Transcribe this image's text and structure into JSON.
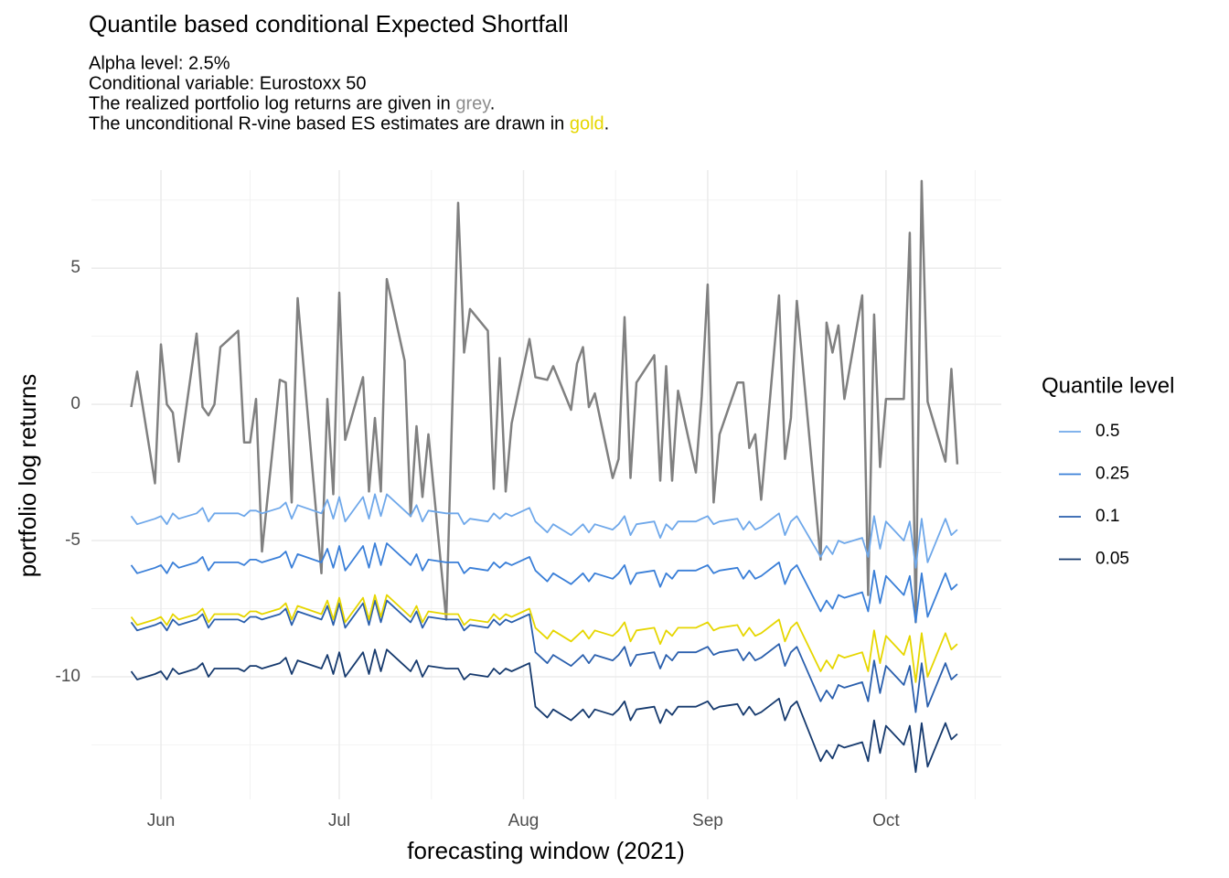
{
  "chart_data": {
    "type": "line",
    "title": "Quantile based conditional Expected Shortfall",
    "subtitle": [
      "Alpha level: 2.5%",
      "Conditional variable: Eurostoxx 50",
      [
        "The realized portfolio log returns are given in ",
        {
          "text": "grey",
          "color": "#8c8c8c"
        },
        "."
      ],
      [
        "The unconditional R-vine based ES estimates are drawn in ",
        {
          "text": "gold",
          "color": "#e6d600"
        },
        "."
      ]
    ],
    "x_label": "forecasting window (2021)",
    "y_label": "portfolio log returns",
    "legend_title": "Quantile level",
    "legend_position": "right",
    "grid": true,
    "xlim": [
      140.3,
      293.4
    ],
    "ylim": [
      -14.5,
      8.6
    ],
    "xticks": [
      {
        "value": 152,
        "label": "Jun"
      },
      {
        "value": 182,
        "label": "Jul"
      },
      {
        "value": 213,
        "label": "Aug"
      },
      {
        "value": 244,
        "label": "Sep"
      },
      {
        "value": 274,
        "label": "Oct"
      }
    ],
    "yticks": [
      -10,
      -5,
      0,
      5
    ],
    "x": [
      147,
      148,
      151,
      152,
      153,
      154,
      155,
      158,
      159,
      160,
      161,
      162,
      165,
      166,
      167,
      168,
      169,
      172,
      173,
      174,
      175,
      179,
      180,
      181,
      182,
      183,
      186,
      187,
      188,
      189,
      190,
      193,
      194,
      195,
      196,
      197,
      200,
      202,
      203,
      204,
      207,
      208,
      209,
      210,
      211,
      214,
      215,
      217,
      218,
      221,
      222,
      223,
      224,
      225,
      228,
      229,
      230,
      231,
      232,
      235,
      236,
      237,
      238,
      239,
      242,
      243,
      244,
      245,
      246,
      249,
      250,
      251,
      252,
      253,
      256,
      257,
      258,
      259,
      263,
      264,
      265,
      266,
      267,
      270,
      271,
      272,
      273,
      274,
      277,
      278,
      279,
      280,
      281,
      284,
      285,
      286
    ],
    "series": [
      {
        "color": "#808080",
        "width": 2.5,
        "values": [
          -0.1,
          1.2,
          -2.9,
          2.2,
          0,
          -0.3,
          -2.1,
          2.6,
          -0.1,
          -0.4,
          0,
          2.1,
          2.7,
          -1.4,
          -1.4,
          0.2,
          -5.4,
          0.9,
          0.8,
          -3.6,
          3.9,
          -6.2,
          0.2,
          -3.3,
          4.1,
          -1.3,
          1.0,
          -3.2,
          -0.5,
          -3.2,
          4.6,
          1.6,
          -4.1,
          -0.8,
          -3.4,
          -1.1,
          -7.9,
          7.4,
          1.9,
          3.5,
          2.7,
          -3.1,
          1.7,
          -3.2,
          -0.7,
          2.4,
          1.0,
          0.9,
          1.4,
          -0.2,
          1.5,
          2.1,
          -0.1,
          0.4,
          -2.7,
          -2.0,
          3.2,
          -2.7,
          0.8,
          1.8,
          -2.8,
          1.4,
          -2.8,
          0.5,
          -2.5,
          0.3,
          4.4,
          -3.6,
          -1.1,
          0.8,
          0.8,
          -1.6,
          -1.1,
          -3.5,
          4.0,
          -2.0,
          -0.5,
          3.8,
          -5.7,
          3.0,
          1.9,
          2.9,
          0.2,
          4.0,
          -7.0,
          3.3,
          -2.3,
          0.2,
          0.2,
          6.3,
          -8.0,
          8.2,
          0.1,
          -2.1,
          1.3,
          -2.2
        ]
      },
      {
        "name": "0.5",
        "color": "#6fa8ea",
        "width": 1.8,
        "values": [
          -4.1,
          -4.4,
          -4.2,
          -4.1,
          -4.4,
          -4.0,
          -4.2,
          -4.0,
          -3.8,
          -4.3,
          -4.0,
          -4.0,
          -4.0,
          -4.1,
          -3.9,
          -3.9,
          -4.0,
          -3.8,
          -3.6,
          -4.2,
          -3.7,
          -4.0,
          -3.5,
          -4.2,
          -3.4,
          -4.3,
          -3.4,
          -4.2,
          -3.3,
          -4.1,
          -3.3,
          -3.9,
          -4.1,
          -3.7,
          -4.3,
          -3.9,
          -4.0,
          -4.0,
          -4.4,
          -4.2,
          -4.3,
          -4.0,
          -4.2,
          -4.0,
          -4.1,
          -3.8,
          -4.3,
          -4.7,
          -4.4,
          -4.8,
          -4.6,
          -4.4,
          -4.7,
          -4.4,
          -4.6,
          -4.4,
          -4.1,
          -4.8,
          -4.4,
          -4.3,
          -4.9,
          -4.4,
          -4.6,
          -4.3,
          -4.3,
          -4.2,
          -4.1,
          -4.4,
          -4.3,
          -4.2,
          -4.6,
          -4.3,
          -4.6,
          -4.5,
          -4.0,
          -4.8,
          -4.3,
          -4.1,
          -5.6,
          -5.2,
          -5.5,
          -5.0,
          -5.1,
          -4.9,
          -5.6,
          -4.1,
          -5.3,
          -4.3,
          -5.0,
          -4.3,
          -6.0,
          -4.2,
          -5.8,
          -4.2,
          -4.8,
          -4.6
        ]
      },
      {
        "name": "0.25",
        "color": "#3a7fd8",
        "width": 1.8,
        "values": [
          -5.9,
          -6.2,
          -6.0,
          -5.9,
          -6.2,
          -5.8,
          -6.0,
          -5.8,
          -5.6,
          -6.1,
          -5.8,
          -5.8,
          -5.8,
          -5.9,
          -5.7,
          -5.7,
          -5.8,
          -5.6,
          -5.4,
          -6.0,
          -5.5,
          -5.8,
          -5.3,
          -6.0,
          -5.2,
          -6.1,
          -5.2,
          -6.0,
          -5.1,
          -5.9,
          -5.1,
          -5.7,
          -5.9,
          -5.5,
          -6.1,
          -5.7,
          -5.8,
          -5.8,
          -6.2,
          -6.0,
          -6.1,
          -5.8,
          -6.0,
          -5.8,
          -5.9,
          -5.6,
          -6.1,
          -6.5,
          -6.2,
          -6.6,
          -6.4,
          -6.2,
          -6.5,
          -6.2,
          -6.4,
          -6.2,
          -5.9,
          -6.6,
          -6.2,
          -6.1,
          -6.7,
          -6.2,
          -6.4,
          -6.1,
          -6.1,
          -6.0,
          -5.9,
          -6.2,
          -6.1,
          -6.0,
          -6.4,
          -6.1,
          -6.4,
          -6.3,
          -5.8,
          -6.6,
          -6.1,
          -5.9,
          -7.6,
          -7.2,
          -7.5,
          -7.0,
          -7.1,
          -6.9,
          -7.6,
          -6.1,
          -7.3,
          -6.3,
          -7.0,
          -6.3,
          -8.0,
          -6.2,
          -7.8,
          -6.2,
          -6.8,
          -6.6
        ]
      },
      {
        "name": "0.1",
        "color": "#2a5fad",
        "width": 1.8,
        "values": [
          -8.0,
          -8.3,
          -8.1,
          -8.0,
          -8.3,
          -7.9,
          -8.1,
          -7.9,
          -7.7,
          -8.2,
          -7.9,
          -7.9,
          -7.9,
          -8.0,
          -7.8,
          -7.8,
          -7.9,
          -7.7,
          -7.5,
          -8.1,
          -7.6,
          -7.9,
          -7.4,
          -8.1,
          -7.3,
          -8.2,
          -7.3,
          -8.1,
          -7.2,
          -8.0,
          -7.2,
          -7.8,
          -8.0,
          -7.6,
          -8.2,
          -7.8,
          -7.9,
          -7.9,
          -8.3,
          -8.1,
          -8.2,
          -7.9,
          -8.1,
          -7.9,
          -8.0,
          -7.7,
          -9.1,
          -9.5,
          -9.2,
          -9.6,
          -9.4,
          -9.2,
          -9.5,
          -9.2,
          -9.4,
          -9.2,
          -8.9,
          -9.6,
          -9.2,
          -9.1,
          -9.7,
          -9.2,
          -9.4,
          -9.1,
          -9.1,
          -9.0,
          -8.9,
          -9.2,
          -9.1,
          -9.0,
          -9.4,
          -9.1,
          -9.4,
          -9.3,
          -8.8,
          -9.6,
          -9.1,
          -8.9,
          -10.9,
          -10.5,
          -10.8,
          -10.3,
          -10.4,
          -10.2,
          -10.9,
          -9.4,
          -10.6,
          -9.6,
          -10.3,
          -9.6,
          -11.3,
          -9.5,
          -11.1,
          -9.5,
          -10.1,
          -9.9
        ]
      },
      {
        "name": "0.05",
        "color": "#163a6e",
        "width": 1.8,
        "values": [
          -9.8,
          -10.1,
          -9.9,
          -9.8,
          -10.1,
          -9.7,
          -9.9,
          -9.7,
          -9.5,
          -10.0,
          -9.7,
          -9.7,
          -9.7,
          -9.8,
          -9.6,
          -9.6,
          -9.7,
          -9.5,
          -9.3,
          -9.9,
          -9.4,
          -9.7,
          -9.2,
          -9.9,
          -9.1,
          -10.0,
          -9.1,
          -9.9,
          -9.0,
          -9.8,
          -9.0,
          -9.6,
          -9.8,
          -9.4,
          -10.0,
          -9.6,
          -9.7,
          -9.7,
          -10.1,
          -9.9,
          -10.0,
          -9.7,
          -9.9,
          -9.7,
          -9.8,
          -9.5,
          -11.1,
          -11.5,
          -11.2,
          -11.6,
          -11.4,
          -11.2,
          -11.5,
          -11.2,
          -11.4,
          -11.2,
          -10.9,
          -11.6,
          -11.2,
          -11.1,
          -11.7,
          -11.2,
          -11.4,
          -11.1,
          -11.1,
          -11.0,
          -10.9,
          -11.2,
          -11.1,
          -11.0,
          -11.4,
          -11.1,
          -11.4,
          -11.3,
          -10.8,
          -11.6,
          -11.1,
          -10.9,
          -13.1,
          -12.7,
          -13.0,
          -12.5,
          -12.6,
          -12.4,
          -13.1,
          -11.6,
          -12.8,
          -11.8,
          -12.5,
          -11.8,
          -13.5,
          -11.7,
          -13.3,
          -11.7,
          -12.3,
          -12.1
        ]
      },
      {
        "color": "#e6d600",
        "width": 1.8,
        "values": [
          -7.8,
          -8.1,
          -7.9,
          -7.8,
          -8.1,
          -7.7,
          -7.9,
          -7.7,
          -7.5,
          -8.0,
          -7.7,
          -7.7,
          -7.7,
          -7.8,
          -7.6,
          -7.6,
          -7.7,
          -7.5,
          -7.3,
          -7.9,
          -7.4,
          -7.7,
          -7.2,
          -7.9,
          -7.1,
          -8.0,
          -7.1,
          -7.9,
          -7.0,
          -7.8,
          -7.0,
          -7.6,
          -7.8,
          -7.4,
          -8.0,
          -7.6,
          -7.7,
          -7.7,
          -8.1,
          -7.9,
          -8.0,
          -7.7,
          -7.9,
          -7.7,
          -7.8,
          -7.5,
          -8.2,
          -8.6,
          -8.3,
          -8.7,
          -8.5,
          -8.3,
          -8.6,
          -8.3,
          -8.5,
          -8.3,
          -8.0,
          -8.7,
          -8.3,
          -8.2,
          -8.8,
          -8.3,
          -8.5,
          -8.2,
          -8.2,
          -8.1,
          -8.0,
          -8.3,
          -8.2,
          -8.1,
          -8.5,
          -8.2,
          -8.5,
          -8.4,
          -7.9,
          -8.7,
          -8.2,
          -8.0,
          -9.8,
          -9.4,
          -9.7,
          -9.2,
          -9.3,
          -9.1,
          -9.8,
          -8.3,
          -9.5,
          -8.5,
          -9.2,
          -8.5,
          -10.2,
          -8.4,
          -10.0,
          -8.4,
          -9.0,
          -8.8
        ]
      }
    ]
  }
}
